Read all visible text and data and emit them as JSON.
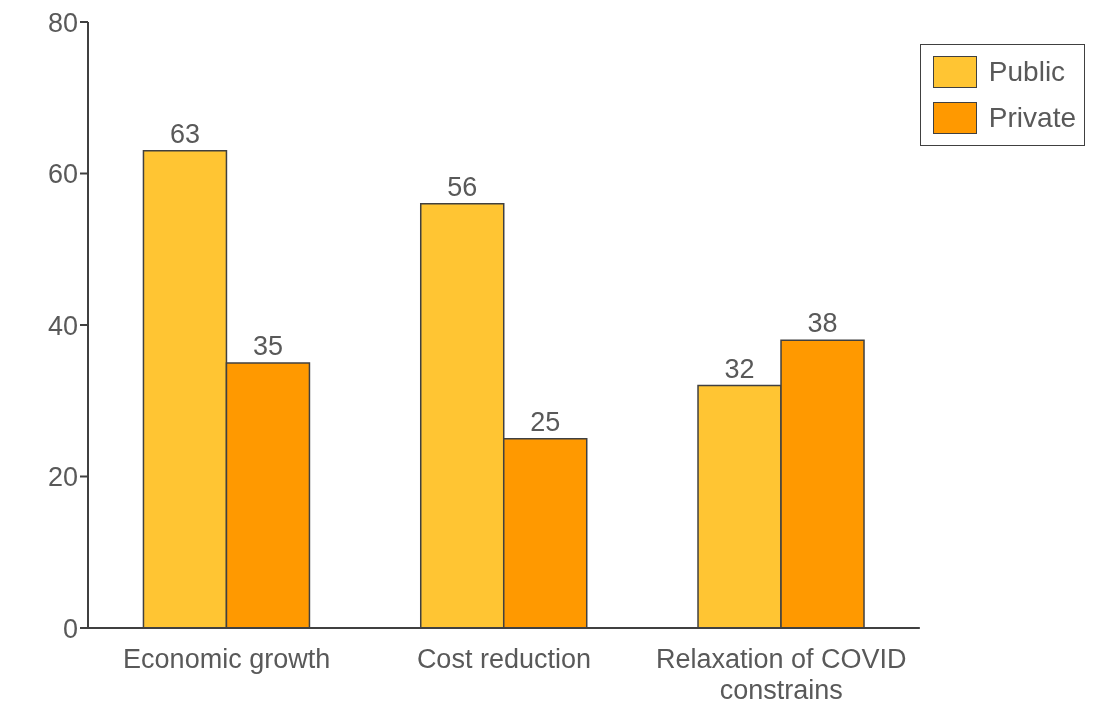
{
  "chart_data": {
    "type": "bar",
    "categories": [
      "Economic growth",
      "Cost reduction",
      "Relaxation of COVID constrains"
    ],
    "series": [
      {
        "name": "Public",
        "color": "#ffc533",
        "values": [
          63,
          56,
          32
        ]
      },
      {
        "name": "Private",
        "color": "#ff9900",
        "values": [
          35,
          25,
          38
        ]
      }
    ],
    "ylim": [
      0,
      80
    ],
    "yticks": [
      0,
      20,
      40,
      60,
      80
    ],
    "grid": false,
    "legend": "top right",
    "data_labels": true
  }
}
